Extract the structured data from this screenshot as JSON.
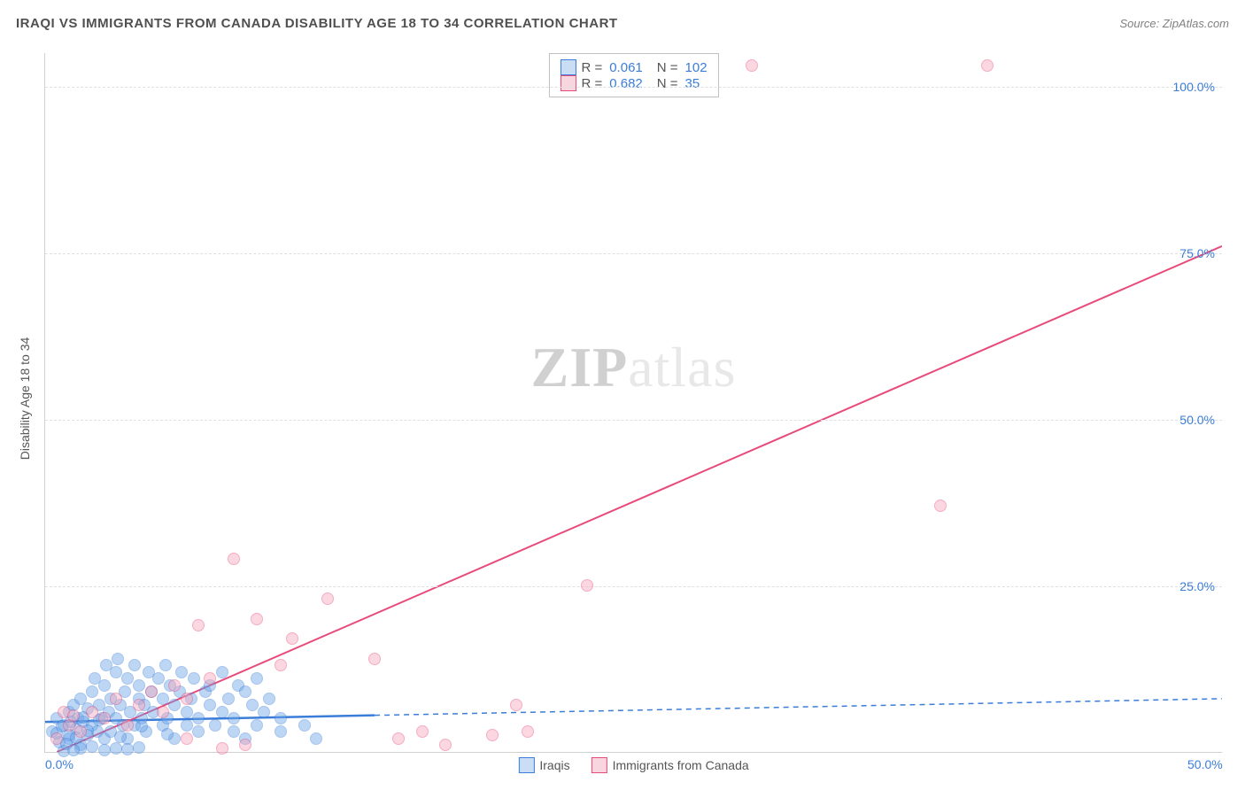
{
  "title": "IRAQI VS IMMIGRANTS FROM CANADA DISABILITY AGE 18 TO 34 CORRELATION CHART",
  "source": "Source: ZipAtlas.com",
  "y_axis_title": "Disability Age 18 to 34",
  "watermark_left": "ZIP",
  "watermark_right": "atlas",
  "chart": {
    "type": "scatter",
    "xlim": [
      0,
      50
    ],
    "ylim": [
      0,
      105
    ],
    "x_ticks": [
      {
        "val": 0,
        "label": "0.0%"
      },
      {
        "val": 50,
        "label": "50.0%"
      }
    ],
    "y_ticks": [
      {
        "val": 25,
        "label": "25.0%"
      },
      {
        "val": 50,
        "label": "50.0%"
      },
      {
        "val": 75,
        "label": "75.0%"
      },
      {
        "val": 100,
        "label": "100.0%"
      }
    ],
    "grid_color": "#e0e0e0",
    "background_color": "#ffffff",
    "axis_label_color": "#3b7dd8",
    "axis_label_fontsize": 14
  },
  "series": [
    {
      "name": "Iraqis",
      "fill_color": "#6ea6e8",
      "stroke_color": "#3b7dd8",
      "fill_opacity": 0.45,
      "marker_size": 14,
      "R": "0.061",
      "N": "102",
      "trend": {
        "x1": 0,
        "y1": 4.5,
        "x2": 14,
        "y2": 5.5,
        "color": "#3b7dd8",
        "width": 2.5,
        "dash": "none",
        "ext_x1": 14,
        "ext_y1": 5.5,
        "ext_x2": 50,
        "ext_y2": 8.0,
        "ext_dash": "6,5"
      },
      "points": [
        [
          0.3,
          3
        ],
        [
          0.5,
          5
        ],
        [
          0.6,
          1.5
        ],
        [
          0.8,
          4
        ],
        [
          1,
          6
        ],
        [
          1,
          2
        ],
        [
          1.2,
          7
        ],
        [
          1.3,
          3.5
        ],
        [
          1.4,
          5
        ],
        [
          1.5,
          8
        ],
        [
          1.5,
          1
        ],
        [
          1.6,
          4.5
        ],
        [
          1.8,
          6.5
        ],
        [
          1.8,
          2.5
        ],
        [
          2,
          9
        ],
        [
          2,
          4
        ],
        [
          2.1,
          11
        ],
        [
          2.2,
          3
        ],
        [
          2.3,
          7
        ],
        [
          2.4,
          5
        ],
        [
          2.5,
          10
        ],
        [
          2.5,
          2
        ],
        [
          2.6,
          13
        ],
        [
          2.7,
          6
        ],
        [
          2.8,
          8
        ],
        [
          2.8,
          3
        ],
        [
          3,
          12
        ],
        [
          3,
          5
        ],
        [
          3.1,
          14
        ],
        [
          3.2,
          7
        ],
        [
          3.3,
          4
        ],
        [
          3.4,
          9
        ],
        [
          3.5,
          11
        ],
        [
          3.5,
          2
        ],
        [
          3.6,
          6
        ],
        [
          3.8,
          13
        ],
        [
          3.8,
          4
        ],
        [
          4,
          8
        ],
        [
          4,
          10
        ],
        [
          4.1,
          5
        ],
        [
          4.2,
          7
        ],
        [
          4.3,
          3
        ],
        [
          4.4,
          12
        ],
        [
          4.5,
          9
        ],
        [
          4.6,
          6
        ],
        [
          4.8,
          11
        ],
        [
          5,
          4
        ],
        [
          5,
          8
        ],
        [
          5.1,
          13
        ],
        [
          5.2,
          5
        ],
        [
          5.3,
          10
        ],
        [
          5.5,
          7
        ],
        [
          5.5,
          2
        ],
        [
          5.7,
          9
        ],
        [
          5.8,
          12
        ],
        [
          6,
          6
        ],
        [
          6,
          4
        ],
        [
          6.2,
          8
        ],
        [
          6.3,
          11
        ],
        [
          6.5,
          5
        ],
        [
          6.5,
          3
        ],
        [
          6.8,
          9
        ],
        [
          7,
          7
        ],
        [
          7,
          10
        ],
        [
          7.2,
          4
        ],
        [
          7.5,
          12
        ],
        [
          7.5,
          6
        ],
        [
          7.8,
          8
        ],
        [
          8,
          5
        ],
        [
          8,
          3
        ],
        [
          8.2,
          10
        ],
        [
          8.5,
          9
        ],
        [
          8.5,
          2
        ],
        [
          8.8,
          7
        ],
        [
          9,
          11
        ],
        [
          9,
          4
        ],
        [
          9.3,
          6
        ],
        [
          9.5,
          8
        ],
        [
          10,
          5
        ],
        [
          10,
          3
        ],
        [
          1.5,
          0.5
        ],
        [
          2,
          0.8
        ],
        [
          2.5,
          0.3
        ],
        [
          3,
          0.6
        ],
        [
          3.5,
          0.4
        ],
        [
          4,
          0.7
        ],
        [
          0.8,
          0.2
        ],
        [
          1.2,
          0.3
        ],
        [
          11,
          4
        ],
        [
          11.5,
          2
        ],
        [
          1,
          2.5
        ],
        [
          1.8,
          3.2
        ],
        [
          2.3,
          4.8
        ],
        [
          3.2,
          2.2
        ],
        [
          4.1,
          3.8
        ],
        [
          5.2,
          2.7
        ],
        [
          0.5,
          2.8
        ],
        [
          0.7,
          3.8
        ],
        [
          0.9,
          1.2
        ],
        [
          1.1,
          4.5
        ],
        [
          1.3,
          2.1
        ],
        [
          1.6,
          5.2
        ]
      ]
    },
    {
      "name": "Immigrants from Canada",
      "fill_color": "#f5a8bd",
      "stroke_color": "#e84a7a",
      "fill_opacity": 0.45,
      "marker_size": 14,
      "R": "0.682",
      "N": "35",
      "trend": {
        "x1": 0.5,
        "y1": 0,
        "x2": 50,
        "y2": 76,
        "color": "#e84a7a",
        "width": 2,
        "dash": "none"
      },
      "points": [
        [
          0.5,
          2
        ],
        [
          1,
          4
        ],
        [
          1.5,
          3
        ],
        [
          2,
          6
        ],
        [
          2.5,
          5
        ],
        [
          3,
          8
        ],
        [
          3.5,
          4
        ],
        [
          4,
          7
        ],
        [
          4.5,
          9
        ],
        [
          5,
          6
        ],
        [
          5.5,
          10
        ],
        [
          6,
          8
        ],
        [
          6.5,
          19
        ],
        [
          7,
          11
        ],
        [
          8,
          29
        ],
        [
          9,
          20
        ],
        [
          10,
          13
        ],
        [
          10.5,
          17
        ],
        [
          12,
          23
        ],
        [
          14,
          14
        ],
        [
          15,
          2
        ],
        [
          16,
          3
        ],
        [
          17,
          1
        ],
        [
          19,
          2.5
        ],
        [
          20,
          7
        ],
        [
          20.5,
          3
        ],
        [
          23,
          25
        ],
        [
          30,
          103
        ],
        [
          38,
          37
        ],
        [
          40,
          103
        ],
        [
          7.5,
          0.5
        ],
        [
          8.5,
          1
        ],
        [
          6,
          2
        ],
        [
          0.8,
          6
        ],
        [
          1.2,
          5.5
        ]
      ]
    }
  ],
  "stats_legend": {
    "rows": [
      {
        "swatch_fill": "#c9ddf5",
        "swatch_border": "#3b7dd8",
        "r_label": "R =",
        "r_val": "0.061",
        "n_label": "N =",
        "n_val": "102"
      },
      {
        "swatch_fill": "#f8d6e0",
        "swatch_border": "#e84a7a",
        "r_label": "R =",
        "r_val": "0.682",
        "n_label": "N =",
        "n_val": "35"
      }
    ]
  },
  "bottom_legend": [
    {
      "swatch_fill": "#c9ddf5",
      "swatch_border": "#3b7dd8",
      "label": "Iraqis"
    },
    {
      "swatch_fill": "#f8d6e0",
      "swatch_border": "#e84a7a",
      "label": "Immigrants from Canada"
    }
  ]
}
